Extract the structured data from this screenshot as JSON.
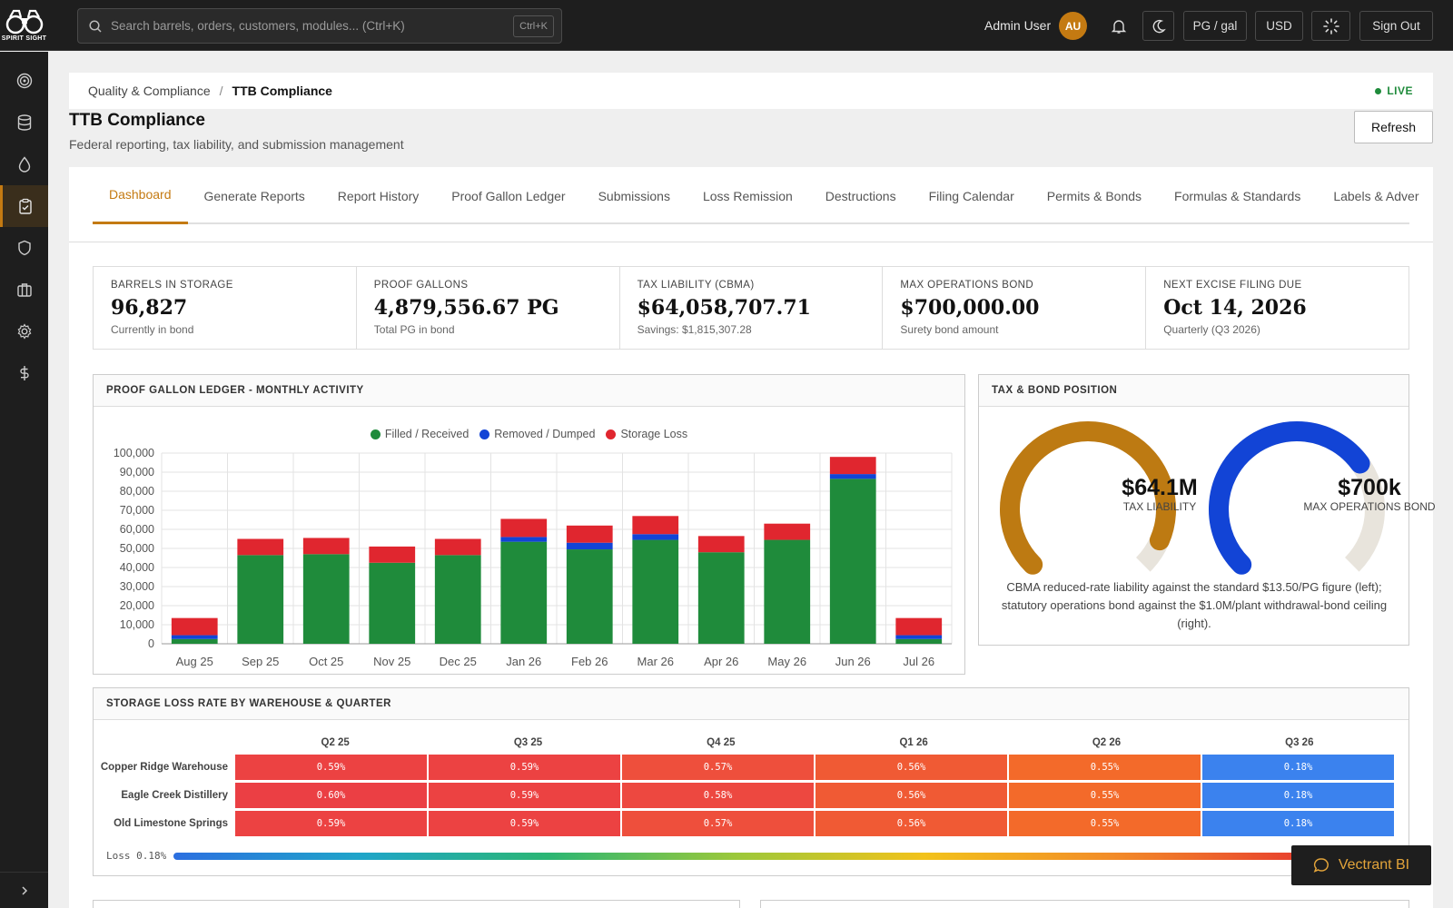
{
  "app": {
    "logo_text": "SPIRIT SIGHT"
  },
  "topbar": {
    "search_placeholder": "Search barrels, orders, customers, modules... (Ctrl+K)",
    "search_shortcut": "Ctrl+K",
    "user_name": "Admin User",
    "avatar_initials": "AU",
    "unit_toggle": "PG / gal",
    "currency": "USD",
    "sign_out": "Sign Out"
  },
  "sidebar": {
    "items": [
      {
        "icon": "target-icon"
      },
      {
        "icon": "database-icon"
      },
      {
        "icon": "droplet-icon"
      },
      {
        "icon": "clipboard-check-icon",
        "active": true
      },
      {
        "icon": "shield-icon"
      },
      {
        "icon": "briefcase-icon"
      },
      {
        "icon": "gear-icon"
      },
      {
        "icon": "dollar-icon"
      }
    ]
  },
  "breadcrumb": {
    "parent": "Quality & Compliance",
    "separator": "/",
    "current": "TTB Compliance",
    "live": "LIVE"
  },
  "page": {
    "title": "TTB Compliance",
    "subtitle": "Federal reporting, tax liability, and submission management",
    "refresh": "Refresh"
  },
  "tabs": [
    "Dashboard",
    "Generate Reports",
    "Report History",
    "Proof Gallon Ledger",
    "Submissions",
    "Loss Remission",
    "Destructions",
    "Filing Calendar",
    "Permits & Bonds",
    "Formulas & Standards",
    "Labels & Adver"
  ],
  "kpis": [
    {
      "label": "Barrels in Storage",
      "value": "96,827",
      "sub": "Currently in bond"
    },
    {
      "label": "Proof Gallons",
      "value": "4,879,556.67 PG",
      "sub": "Total PG in bond"
    },
    {
      "label": "Tax Liability (CBMA)",
      "value": "$64,058,707.71",
      "sub": "Savings: $1,815,307.28"
    },
    {
      "label": "Max Operations Bond",
      "value": "$700,000.00",
      "sub": "Surety bond amount"
    },
    {
      "label": "Next Excise Filing Due",
      "value": "Oct 14, 2026",
      "sub": "Quarterly (Q3 2026)"
    }
  ],
  "ledger_panel": {
    "title": "Proof Gallon Ledger - Monthly Activity"
  },
  "chart_data": {
    "type": "bar",
    "stacked": true,
    "categories": [
      "Aug 25",
      "Sep 25",
      "Oct 25",
      "Nov 25",
      "Dec 25",
      "Jan 26",
      "Feb 26",
      "Mar 26",
      "Apr 26",
      "May 26",
      "Jun 26",
      "Jul 26"
    ],
    "series": [
      {
        "name": "Filled / Received",
        "color": "#1f8b3b",
        "values": [
          2500,
          46500,
          47000,
          42500,
          46500,
          53500,
          49500,
          54500,
          48000,
          54500,
          86500,
          2500
        ]
      },
      {
        "name": "Removed / Dumped",
        "color": "#1244d6",
        "values": [
          2000,
          0,
          0,
          0,
          0,
          2500,
          3500,
          3000,
          0,
          0,
          2500,
          2000
        ]
      },
      {
        "name": "Storage Loss",
        "color": "#e0262f",
        "values": [
          9000,
          8500,
          8500,
          8500,
          8500,
          9500,
          9000,
          9500,
          8500,
          8500,
          9000,
          9000
        ]
      }
    ],
    "yticks": [
      "100,000",
      "90,000",
      "80,000",
      "70,000",
      "60,000",
      "50,000",
      "40,000",
      "30,000",
      "20,000",
      "10,000",
      "0"
    ],
    "ylim": [
      0,
      100000
    ],
    "grid": true,
    "legend": "top-center"
  },
  "tax_panel": {
    "title": "Tax & Bond Position",
    "gauges": [
      {
        "value_text": "$64.1M",
        "label": "TAX LIABILITY",
        "fraction": 0.92,
        "color": "#bd7a12"
      },
      {
        "value_text": "$700k",
        "label": "MAX OPERATIONS BOND",
        "fraction": 0.7,
        "color": "#1244d6"
      }
    ],
    "caption": "CBMA reduced-rate liability against the standard $13.50/PG figure (left); statutory operations bond against the $1.0M/plant withdrawal-bond ceiling (right)."
  },
  "heatmap": {
    "title": "Storage Loss Rate by Warehouse & Quarter",
    "columns": [
      "Q2 25",
      "Q3 25",
      "Q4 25",
      "Q1 26",
      "Q2 26",
      "Q3 26"
    ],
    "rows": [
      {
        "name": "Copper Ridge Warehouse",
        "cells": [
          {
            "text": "0.59%",
            "color": "#ec4242"
          },
          {
            "text": "0.59%",
            "color": "#ec4242"
          },
          {
            "text": "0.57%",
            "color": "#ee4f3c"
          },
          {
            "text": "0.56%",
            "color": "#f05a34"
          },
          {
            "text": "0.55%",
            "color": "#f36a2a"
          },
          {
            "text": "0.18%",
            "color": "#3b82ee"
          }
        ]
      },
      {
        "name": "Eagle Creek Distillery",
        "cells": [
          {
            "text": "0.60%",
            "color": "#eb3f44"
          },
          {
            "text": "0.59%",
            "color": "#ec4242"
          },
          {
            "text": "0.58%",
            "color": "#ed4840"
          },
          {
            "text": "0.56%",
            "color": "#f05a34"
          },
          {
            "text": "0.55%",
            "color": "#f36a2a"
          },
          {
            "text": "0.18%",
            "color": "#3b82ee"
          }
        ]
      },
      {
        "name": "Old Limestone Springs",
        "cells": [
          {
            "text": "0.59%",
            "color": "#ec4242"
          },
          {
            "text": "0.59%",
            "color": "#ec4242"
          },
          {
            "text": "0.57%",
            "color": "#ee4f3c"
          },
          {
            "text": "0.56%",
            "color": "#f05a34"
          },
          {
            "text": "0.55%",
            "color": "#f36a2a"
          },
          {
            "text": "0.18%",
            "color": "#3b82ee"
          }
        ]
      }
    ],
    "scale_label": "Loss 0.18%"
  },
  "assistant": {
    "label": "Vectrant BI"
  }
}
